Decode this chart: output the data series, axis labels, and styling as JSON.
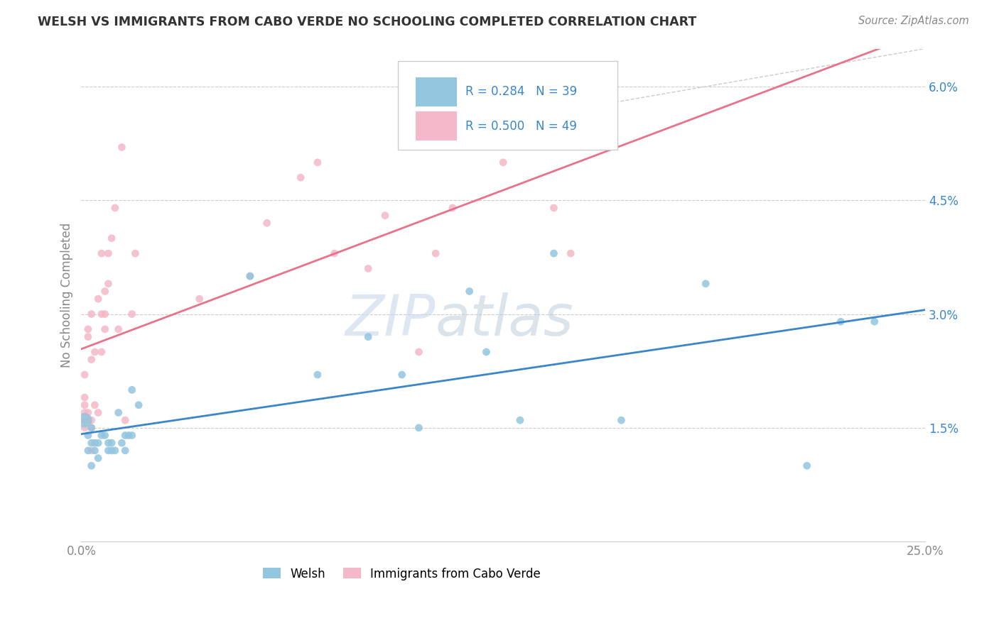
{
  "title": "WELSH VS IMMIGRANTS FROM CABO VERDE NO SCHOOLING COMPLETED CORRELATION CHART",
  "source": "Source: ZipAtlas.com",
  "ylabel_label": "No Schooling Completed",
  "legend_label1": "Welsh",
  "legend_label2": "Immigrants from Cabo Verde",
  "R1": 0.284,
  "N1": 39,
  "R2": 0.5,
  "N2": 49,
  "color_blue": "#92c5de",
  "color_pink": "#f4b8c8",
  "line_color_blue": "#3a86c8",
  "line_color_pink": "#e8728a",
  "watermark_zip": "ZIP",
  "watermark_atlas": "atlas",
  "xmin": 0.0,
  "xmax": 0.25,
  "ymin": 0.0,
  "ymax": 0.065,
  "ytick_vals": [
    0.015,
    0.03,
    0.045,
    0.06
  ],
  "ytick_labels": [
    "1.5%",
    "3.0%",
    "4.5%",
    "6.0%"
  ],
  "xtick_vals": [
    0.0,
    0.25
  ],
  "xtick_labels": [
    "0.0%",
    "25.0%"
  ],
  "blue_x": [
    0.001,
    0.002,
    0.002,
    0.003,
    0.003,
    0.003,
    0.004,
    0.004,
    0.005,
    0.005,
    0.006,
    0.007,
    0.008,
    0.008,
    0.009,
    0.009,
    0.01,
    0.011,
    0.012,
    0.013,
    0.013,
    0.014,
    0.015,
    0.015,
    0.017,
    0.05,
    0.07,
    0.085,
    0.095,
    0.1,
    0.115,
    0.12,
    0.13,
    0.14,
    0.16,
    0.185,
    0.215,
    0.225,
    0.235
  ],
  "blue_y": [
    0.016,
    0.012,
    0.014,
    0.01,
    0.013,
    0.015,
    0.012,
    0.013,
    0.011,
    0.013,
    0.014,
    0.014,
    0.013,
    0.012,
    0.012,
    0.013,
    0.012,
    0.017,
    0.013,
    0.012,
    0.014,
    0.014,
    0.014,
    0.02,
    0.018,
    0.035,
    0.022,
    0.027,
    0.022,
    0.015,
    0.033,
    0.025,
    0.016,
    0.038,
    0.016,
    0.034,
    0.01,
    0.029,
    0.029
  ],
  "blue_large_idx": [
    0
  ],
  "pink_x": [
    0.001,
    0.001,
    0.001,
    0.001,
    0.001,
    0.001,
    0.002,
    0.002,
    0.002,
    0.002,
    0.003,
    0.003,
    0.003,
    0.003,
    0.003,
    0.004,
    0.004,
    0.005,
    0.005,
    0.006,
    0.006,
    0.006,
    0.007,
    0.007,
    0.007,
    0.008,
    0.008,
    0.009,
    0.01,
    0.011,
    0.012,
    0.013,
    0.015,
    0.016,
    0.035,
    0.05,
    0.055,
    0.065,
    0.07,
    0.075,
    0.085,
    0.09,
    0.1,
    0.105,
    0.11,
    0.125,
    0.14,
    0.145,
    0.155
  ],
  "pink_y": [
    0.015,
    0.016,
    0.017,
    0.018,
    0.019,
    0.022,
    0.016,
    0.017,
    0.027,
    0.028,
    0.012,
    0.015,
    0.024,
    0.03,
    0.016,
    0.018,
    0.025,
    0.017,
    0.032,
    0.025,
    0.03,
    0.038,
    0.028,
    0.03,
    0.033,
    0.034,
    0.038,
    0.04,
    0.044,
    0.028,
    0.052,
    0.016,
    0.03,
    0.038,
    0.032,
    0.035,
    0.042,
    0.048,
    0.05,
    0.038,
    0.036,
    0.043,
    0.025,
    0.038,
    0.044,
    0.05,
    0.044,
    0.038,
    0.06
  ],
  "diag_line_x": [
    0.12,
    0.25
  ],
  "diag_line_y": [
    0.055,
    0.065
  ]
}
